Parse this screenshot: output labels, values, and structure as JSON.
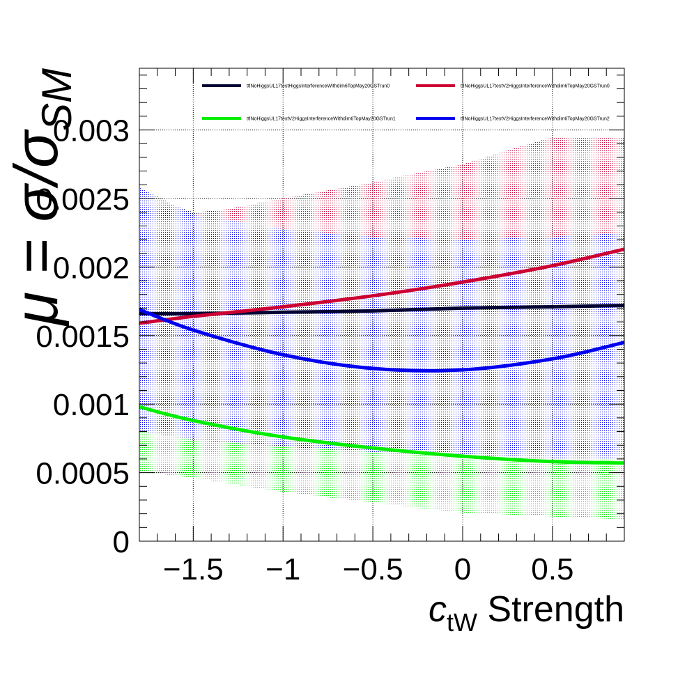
{
  "chart_data": {
    "type": "line",
    "title": "",
    "xlabel_main": "c",
    "xlabel_sub": "tW",
    "xlabel_rest": " Strength",
    "ylabel_main": "μ = σ/σ",
    "ylabel_sub": "SM",
    "xlim": [
      -1.8,
      0.9
    ],
    "ylim": [
      0,
      0.00345
    ],
    "grid": true,
    "legend_placement": "top",
    "x_ticks": [
      {
        "value": -1.5,
        "label": "−1.5"
      },
      {
        "value": -1.0,
        "label": "−1"
      },
      {
        "value": -0.5,
        "label": "−0.5"
      },
      {
        "value": 0.0,
        "label": "0"
      },
      {
        "value": 0.5,
        "label": "0.5"
      }
    ],
    "y_ticks": [
      {
        "value": 0,
        "label": "0"
      },
      {
        "value": 0.0005,
        "label": "0.0005"
      },
      {
        "value": 0.001,
        "label": "0.001"
      },
      {
        "value": 0.0015,
        "label": "0.0015"
      },
      {
        "value": 0.002,
        "label": "0.002"
      },
      {
        "value": 0.0025,
        "label": "0.0025"
      },
      {
        "value": 0.003,
        "label": "0.003"
      }
    ],
    "x": [
      -1.8,
      -1.5,
      -1.0,
      -0.5,
      0.0,
      0.5,
      0.9
    ],
    "series": [
      {
        "name": "ttlNoHiggsUL17testHiggsInterferenceWithdim6TopMay20GSTrun0",
        "color": "#000033",
        "values": [
          0.00166,
          0.00166,
          0.00167,
          0.00168,
          0.0017,
          0.00171,
          0.00172
        ],
        "band_lower": [
          0.00051,
          0.00047,
          0.00037,
          0.0003,
          0.00024,
          0.0002,
          0.00016
        ],
        "band_upper": [
          0.00255,
          0.0024,
          0.00245,
          0.00255,
          0.00265,
          0.0028,
          0.00295
        ]
      },
      {
        "name": "ttlNoHiggsUL17testV2HiggsInterferenceWithdim6TopMay20GSTrun0",
        "color": "#cc0033",
        "values": [
          0.00159,
          0.00164,
          0.00171,
          0.00179,
          0.00189,
          0.00201,
          0.00213
        ],
        "band_lower": [
          0.0022,
          0.00222,
          0.00222,
          0.0022,
          0.00218,
          0.00218,
          0.00218
        ],
        "band_upper": [
          0.0024,
          0.00238,
          0.0025,
          0.00262,
          0.00275,
          0.00295,
          0.00295
        ]
      },
      {
        "name": "ttlNoHiggsUL17testV2HiggsInterferenceWithdim6TopMay20GSTrun1",
        "color": "#00ee00",
        "values": [
          0.00098,
          0.00088,
          0.00076,
          0.00068,
          0.00062,
          0.00058,
          0.00057
        ],
        "band_lower": [
          0.00051,
          0.00046,
          0.00036,
          0.00028,
          0.00021,
          0.00018,
          0.00016
        ],
        "band_upper": [
          0.0008,
          0.00074,
          0.00069,
          0.00065,
          0.00062,
          0.0006,
          0.0006
        ]
      },
      {
        "name": "ttlNoHiggsUL17testV2HiggsInterferenceWithdim6TopMay20GSTrun2",
        "color": "#0000ee",
        "values": [
          0.00169,
          0.00154,
          0.00136,
          0.00126,
          0.00125,
          0.00133,
          0.00145
        ],
        "band_lower": [
          0.0008,
          0.00075,
          0.0007,
          0.00065,
          0.00062,
          0.0006,
          0.0006
        ],
        "band_upper": [
          0.00258,
          0.00238,
          0.00228,
          0.00222,
          0.0022,
          0.00222,
          0.00225
        ]
      }
    ]
  }
}
